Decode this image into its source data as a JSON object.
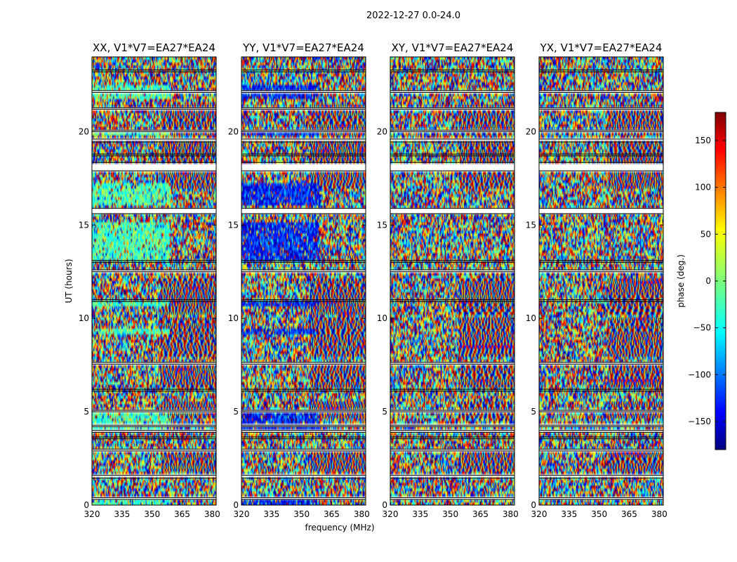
{
  "chart_data": {
    "type": "heatmap",
    "title": "2022-12-27 0.0-24.0",
    "xlabel": "frequency (MHz)",
    "ylabel": "UT (hours)",
    "xlim": [
      320,
      382
    ],
    "ylim": [
      0,
      24
    ],
    "xticks": [
      "320",
      "335",
      "350",
      "365",
      "380"
    ],
    "xtick_values": [
      320,
      335,
      350,
      365,
      380
    ],
    "yticks": [
      "0",
      "5",
      "10",
      "15",
      "20"
    ],
    "ytick_values": [
      0,
      5,
      10,
      15,
      20
    ],
    "colormap": "jet",
    "colorbar": {
      "label": "phase (deg.)",
      "range": [
        -180,
        180
      ],
      "ticks": [
        "150",
        "100",
        "50",
        "0",
        "−50",
        "−100",
        "−150"
      ],
      "tick_values": [
        150,
        100,
        50,
        0,
        -50,
        -100,
        -150
      ]
    },
    "panels": [
      {
        "title": "XX, V1*V7=EA27*EA24",
        "coherent_color": "#66ff99"
      },
      {
        "title": "YY, V1*V7=EA27*EA24",
        "coherent_color": "#0033cc"
      },
      {
        "title": "XY, V1*V7=EA27*EA24",
        "coherent_color": null
      },
      {
        "title": "YX, V1*V7=EA27*EA24",
        "coherent_color": null
      }
    ],
    "flagged_hours": [
      [
        0.3,
        0.4
      ],
      [
        1.45,
        1.6
      ],
      [
        2.9,
        3.0
      ],
      [
        3.55,
        3.65
      ],
      [
        3.9,
        4.0
      ],
      [
        4.2,
        4.28
      ],
      [
        5.0,
        5.08
      ],
      [
        6.1,
        6.2
      ],
      [
        7.55,
        7.65
      ],
      [
        10.9,
        11.0
      ],
      [
        12.5,
        12.6
      ],
      [
        13.0,
        13.1
      ],
      [
        15.6,
        15.9
      ],
      [
        17.9,
        18.35
      ],
      [
        18.7,
        18.8
      ],
      [
        19.45,
        19.6
      ],
      [
        20.0,
        20.08
      ],
      [
        21.2,
        21.28
      ],
      [
        22.1,
        22.2
      ],
      [
        23.2,
        23.3
      ]
    ],
    "fringe_hours": [
      [
        1.8,
        2.8
      ],
      [
        4.6,
        5.6
      ],
      [
        6.3,
        7.5
      ],
      [
        8.0,
        10.0
      ],
      [
        10.2,
        12.2
      ],
      [
        17.0,
        19.5
      ],
      [
        19.8,
        21.5
      ]
    ],
    "coherent_hours": [
      [
        0.0,
        0.5
      ],
      [
        3.9,
        4.9
      ],
      [
        9.1,
        9.4
      ],
      [
        10.7,
        11.0
      ],
      [
        13.0,
        15.2
      ],
      [
        16.0,
        17.2
      ],
      [
        19.8,
        20.0
      ],
      [
        21.8,
        22.5
      ]
    ]
  }
}
